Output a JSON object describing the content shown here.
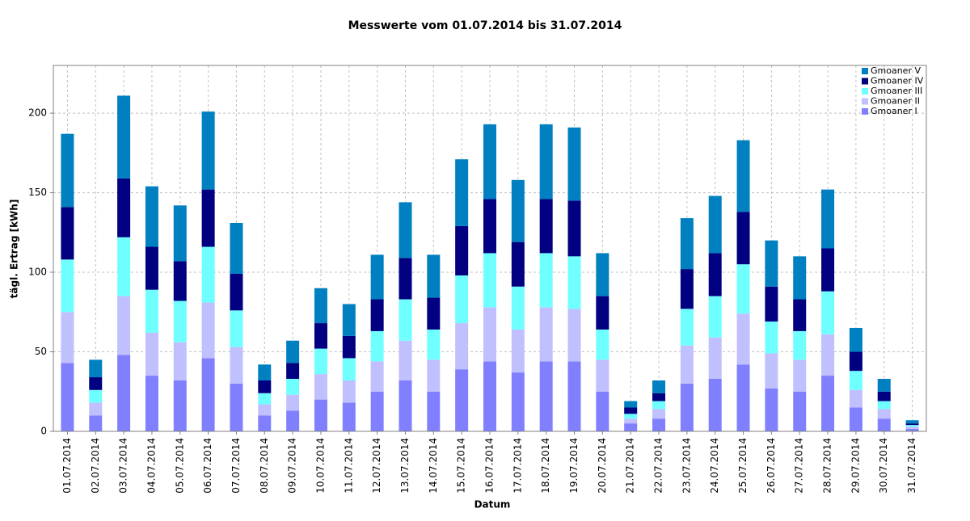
{
  "chart_data": {
    "type": "stacked_bar",
    "title": "Messwerte vom 01.07.2014 bis 31.07.2014",
    "x_label": "Datum",
    "y_label": "tägl. Ertrag [kWh]",
    "categories": [
      "01.07.2014",
      "02.07.2014",
      "03.07.2014",
      "04.07.2014",
      "05.07.2014",
      "06.07.2014",
      "07.07.2014",
      "08.07.2014",
      "09.07.2014",
      "10.07.2014",
      "11.07.2014",
      "12.07.2014",
      "13.07.2014",
      "14.07.2014",
      "15.07.2014",
      "16.07.2014",
      "17.07.2014",
      "18.07.2014",
      "19.07.2014",
      "20.07.2014",
      "21.07.2014",
      "22.07.2014",
      "23.07.2014",
      "24.07.2014",
      "25.07.2014",
      "26.07.2014",
      "27.07.2014",
      "28.07.2014",
      "29.07.2014",
      "30.07.2014",
      "31.07.2014"
    ],
    "series": [
      {
        "name": "Gmoaner I",
        "color": "#8080ff",
        "values": [
          43,
          10,
          48,
          35,
          32,
          46,
          30,
          10,
          13,
          20,
          18,
          25,
          32,
          25,
          39,
          44,
          37,
          44,
          44,
          25,
          5,
          8,
          30,
          33,
          42,
          27,
          25,
          35,
          15,
          8,
          1.5
        ]
      },
      {
        "name": "Gmoaner II",
        "color": "#c0c0ff",
        "values": [
          32,
          8,
          37,
          27,
          24,
          35,
          23,
          7,
          10,
          16,
          14,
          19,
          25,
          20,
          29,
          34,
          27,
          34,
          33,
          20,
          3,
          6,
          24,
          26,
          32,
          22,
          20,
          26,
          11,
          6,
          1.5
        ]
      },
      {
        "name": "Gmoaner III",
        "color": "#70ffff",
        "values": [
          33,
          8,
          37,
          27,
          26,
          35,
          23,
          7,
          10,
          16,
          14,
          19,
          26,
          19,
          30,
          34,
          27,
          34,
          33,
          19,
          3,
          5,
          23,
          26,
          31,
          20,
          18,
          27,
          12,
          5,
          1
        ]
      },
      {
        "name": "Gmoaner IV",
        "color": "#000080",
        "values": [
          33,
          8,
          37,
          27,
          25,
          36,
          23,
          8,
          10,
          16,
          14,
          20,
          26,
          20,
          31,
          34,
          28,
          34,
          35,
          21,
          4,
          5,
          25,
          27,
          33,
          22,
          20,
          27,
          12,
          6,
          1
        ]
      },
      {
        "name": "Gmoaner V",
        "color": "#0080c0",
        "values": [
          46,
          11,
          52,
          38,
          35,
          49,
          32,
          10,
          14,
          22,
          20,
          28,
          35,
          27,
          42,
          47,
          39,
          47,
          46,
          27,
          4,
          8,
          32,
          36,
          45,
          29,
          27,
          37,
          15,
          8,
          2
        ]
      }
    ],
    "ylim": [
      0,
      230
    ],
    "yticks": [
      0,
      50,
      100,
      150,
      200
    ],
    "grid": true,
    "legend": "top-right"
  }
}
